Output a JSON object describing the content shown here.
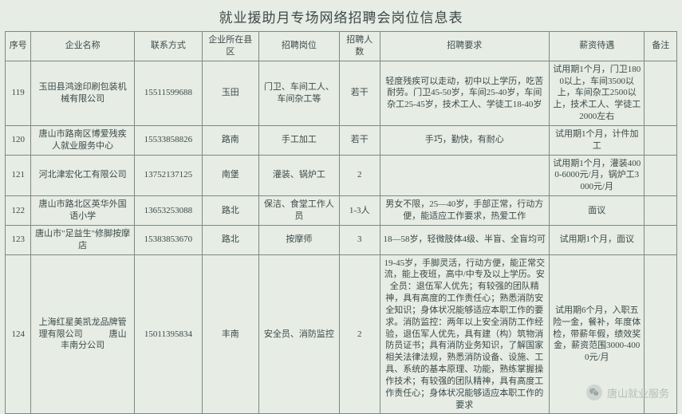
{
  "title": "就业援助月专场网络招聘会岗位信息表",
  "columns": [
    "序号",
    "企业名称",
    "联系方式",
    "企业所在县区",
    "招聘岗位",
    "招聘人数",
    "招聘要求",
    "薪资待遇",
    "备注"
  ],
  "rows": [
    {
      "idx": "119",
      "name": "玉田县鸿途印刷包装机械有限公司",
      "phone": "15511599688",
      "area": "玉田",
      "pos": "门卫、车间工人、车间杂工等",
      "num": "若干",
      "req": "轻度残疾可以走动，初中以上学历，吃苦耐劳。门卫45-50岁，车间25-40岁，车间杂工25-45岁，技术工人、学徒工18-40岁",
      "sal": "试用期1个月，门卫1800以上，车间3500以上，车间杂工2500以上，技术工人、学徒工2000左右",
      "note": ""
    },
    {
      "idx": "120",
      "name": "唐山市路南区博爱残疾人就业服务中心",
      "phone": "15533858826",
      "area": "路南",
      "pos": "手工加工",
      "num": "若干",
      "req": "手巧，勤快，有耐心",
      "sal": "试用期1个月，计件加工",
      "note": ""
    },
    {
      "idx": "121",
      "name": "河北津宏化工有限公司",
      "phone": "13752137125",
      "area": "南堡",
      "pos": "灌装、锅炉工",
      "num": "2",
      "req": "",
      "sal": "试用期1个月，灌装4000-6000元/月，锅炉工3000元/月",
      "note": ""
    },
    {
      "idx": "122",
      "name": "唐山市路北区英华外国语小学",
      "phone": "13653253088",
      "area": "路北",
      "pos": "保洁、食堂工作人员",
      "num": "1-3人",
      "req": "男女不限，25—40岁，手部正常，行动方便，能适应工作要求，热爱工作",
      "sal": "面议",
      "note": ""
    },
    {
      "idx": "123",
      "name": "唐山市\"足益生\"修脚按摩店",
      "phone": "15383853670",
      "area": "路北",
      "pos": "按摩师",
      "num": "3",
      "req": "18—58岁，轻微肢体4级、半盲、全盲均可",
      "sal": "试用期1个月，面议",
      "note": ""
    },
    {
      "idx": "124",
      "name": "上海红星美凯龙品牌管理有限公司　　　唐山丰南分公司",
      "phone": "15011395834",
      "area": "丰南",
      "pos": "安全员、消防监控",
      "num": "2",
      "req": "19-45岁，手脚灵活，行动方便，能正常交流，能上夜班，高中/中专及以上学历。安全员：退伍军人优先；有较强的团队精神，具有高度的工作责任心；熟悉消防安全知识；身体状况能够适应本职工作的要求。消防监控：两年以上安全消防工作经验，退伍军人优先，具有建（构）筑物消防员证书；具有消防业务知识，了解国家相关法律法规，熟悉消防设备、设施、工具、系统的基本原理、功能，熟练掌握操作技术；有较强的团队精神，具有高度工作责任心；身体状况能够适应本职工作的要求",
      "sal": "试用期6个月，入职五险一金，餐补，年度体检，带薪年假，绩效奖金，薪资范围3000-4000元/月",
      "note": ""
    }
  ],
  "watermark": "唐山就业服务",
  "colors": {
    "page_bg": "#e7ece4",
    "border": "#7a8a86",
    "text": "#3b4b4b",
    "watermark": "#b6bebb"
  }
}
